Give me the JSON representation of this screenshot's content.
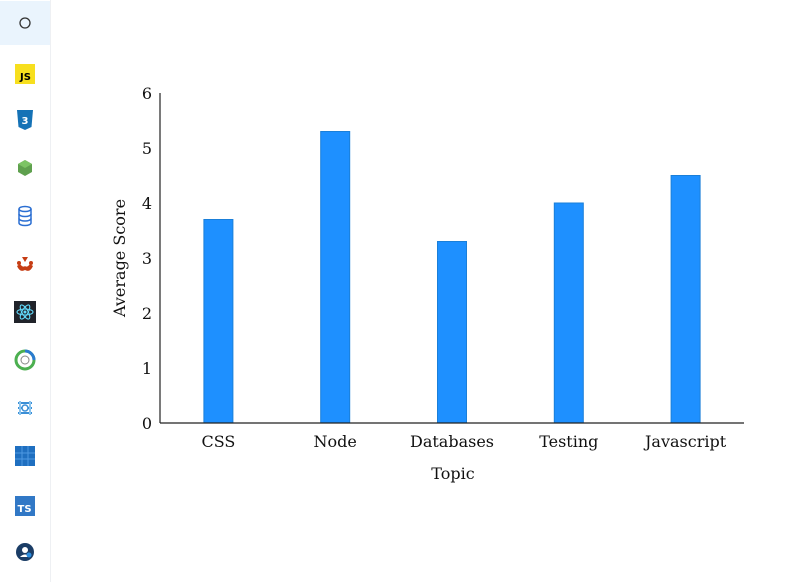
{
  "sidebar": {
    "items": [
      {
        "icon": "circle-home-icon",
        "active": true
      },
      {
        "icon": "javascript-icon"
      },
      {
        "icon": "css3-icon"
      },
      {
        "icon": "nodejs-icon"
      },
      {
        "icon": "database-icon"
      },
      {
        "icon": "jest-icon"
      },
      {
        "icon": "react-icon"
      },
      {
        "icon": "circular-logo-icon"
      },
      {
        "icon": "layered-logo-icon"
      },
      {
        "icon": "blue-grid-icon"
      },
      {
        "icon": "typescript-icon",
        "text": "TS"
      },
      {
        "icon": "user-profile-icon"
      }
    ],
    "js_text": "JS"
  },
  "chart_data": {
    "type": "bar",
    "categories": [
      "CSS",
      "Node",
      "Databases",
      "Testing",
      "Javascript"
    ],
    "values": [
      3.7,
      5.3,
      3.3,
      4.0,
      4.5
    ],
    "xlabel": "Topic",
    "ylabel": "Average Score",
    "ylim": [
      0,
      6
    ],
    "yticks": [
      "0",
      "1",
      "2",
      "3",
      "4",
      "5",
      "6"
    ],
    "grid": false,
    "bar_color": "#1e90ff",
    "bar_edge_color": "#1a7fd9"
  }
}
